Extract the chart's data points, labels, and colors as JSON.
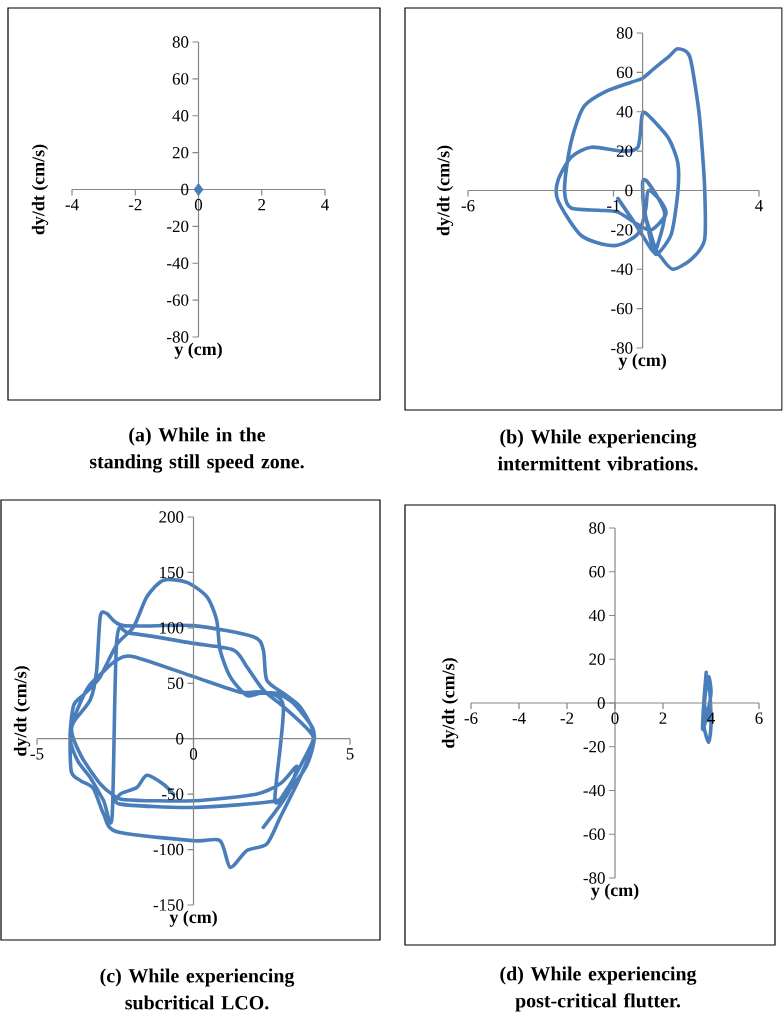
{
  "chart_data": [
    {
      "type": "scatter",
      "title": "(a) While in the standing still speed zone.",
      "xlabel": "y (cm)",
      "ylabel": "dy/dt (cm/s)",
      "xlim": [
        -4,
        4
      ],
      "ylim": [
        -80,
        80
      ],
      "xticks": [
        -4,
        -2,
        0,
        2,
        4
      ],
      "yticks": [
        -80,
        -60,
        -40,
        -20,
        0,
        20,
        40,
        60,
        80
      ],
      "marker": "diamond",
      "color": "#4a7ebb",
      "x": [
        0
      ],
      "values": [
        0
      ]
    },
    {
      "type": "line",
      "title": "(b) While experiencing intermittent vibrations.",
      "xlabel": "y (cm)",
      "ylabel": "dy/dt (cm/s)",
      "xlim": [
        -6,
        4
      ],
      "ylim": [
        -80,
        80
      ],
      "xticks": [
        -6,
        -1,
        4
      ],
      "yticks": [
        -80,
        -60,
        -40,
        -20,
        0,
        20,
        40,
        60,
        80
      ],
      "marker": "none",
      "color": "#4a7ebb",
      "x": [
        -0.85,
        -0.16,
        0.36,
        0.53,
        0.76,
        0.5,
        0.13,
        0,
        0.05,
        0.24,
        0.45,
        0.64,
        1.04,
        1.67,
        2.13,
        2.13,
        2.0,
        1.9,
        1.62,
        1.21,
        0.9,
        0.4,
        0,
        -0.39,
        -1.31,
        -2.0,
        -2.34,
        -2.57,
        -2.68,
        -2.45,
        -1.5,
        -0.85,
        -0.2,
        0.3,
        0.8,
        0.6,
        0.2,
        0.1,
        -0.16,
        -0.96,
        -2.1,
        -2.91,
        -2.91,
        -2.45,
        -1.76,
        -0.73,
        -0.16,
        -0.02,
        0.13,
        0.87,
        1.21,
        1.21,
        0.99,
        0.53,
        0.36,
        0.13,
        0
      ],
      "values": [
        -4,
        -19,
        -31,
        -27,
        -12,
        -3,
        5,
        4,
        -10,
        -20,
        -30,
        -34,
        -40,
        -35,
        -25,
        2,
        30,
        44,
        68,
        72,
        68,
        62,
        57,
        55,
        50,
        43,
        31,
        16,
        -1,
        -9,
        -10,
        -11,
        -17,
        -20,
        -12,
        -5,
        0,
        -10,
        -22,
        -28,
        -23,
        -5,
        5,
        17,
        22,
        20,
        22,
        38,
        39,
        27,
        14,
        -1,
        -22,
        -32,
        -30,
        -15,
        -3
      ]
    },
    {
      "type": "line",
      "title": "(c) While experiencing subcritical LCO.",
      "xlabel": "y (cm)",
      "ylabel": "dy/dt (cm/s)",
      "xlim": [
        -5,
        5
      ],
      "ylim": [
        -150,
        200
      ],
      "xticks": [
        -5,
        0,
        5
      ],
      "yticks": [
        -150,
        -100,
        -50,
        0,
        50,
        100,
        150,
        200
      ],
      "marker": "none",
      "color": "#4a7ebb",
      "x": [
        -0.64,
        -0.96,
        -1.49,
        -1.81,
        -2.34,
        -2.34,
        0,
        2.66,
        3.09,
        3.6,
        3.83,
        3.78,
        3.4,
        2.87,
        2.34,
        2.23,
        1.91,
        0,
        -2.23,
        -2.77,
        -2.98,
        -3.1,
        -3.3,
        -3.83,
        -3.94,
        -3.9,
        -3.6,
        -3.2,
        -2.87,
        -2.45,
        0,
        0.85,
        1.17,
        1.7,
        2.34,
        2.77,
        3.4,
        3.83,
        3.8,
        3.19,
        2.66,
        2.13,
        1.7,
        1.17,
        0.85,
        0.74,
        0.43,
        -0.21,
        -0.96,
        -1.49,
        -1.91,
        -2.45,
        -3.0,
        -3.5,
        -3.83,
        -3.94,
        -3.7,
        -3.3,
        -2.87,
        -2.6,
        -2.45,
        -2.02,
        0,
        1.28,
        1.7,
        2.23,
        2.87,
        3.6,
        3.83,
        3.5,
        3.0,
        2.6,
        2.87,
        2.23,
        1.49,
        0,
        -1.91,
        -2.45,
        -2.9,
        -3.4,
        -3.9,
        -3.6,
        -3.0,
        -2.6,
        -2.2,
        0,
        2.0,
        2.8,
        3.3,
        3.0,
        2.23
      ],
      "values": [
        -50,
        -41,
        -33,
        -44,
        -50,
        -59,
        -62,
        -56,
        -45,
        -25,
        -5,
        10,
        29,
        41,
        53,
        80,
        92,
        102,
        102,
        113,
        110,
        60,
        35,
        15,
        0,
        -30,
        -38,
        -45,
        -68,
        -84,
        -92,
        -92,
        -116,
        -101,
        -95,
        -71,
        -35,
        -5,
        10,
        32,
        41,
        41,
        39,
        56,
        80,
        107,
        128,
        141,
        143,
        128,
        101,
        85,
        55,
        40,
        30,
        0,
        -20,
        -35,
        -56,
        -70,
        89,
        95,
        86,
        80,
        65,
        44,
        29,
        10,
        0,
        -20,
        -45,
        -55,
        29,
        42,
        42,
        56,
        74,
        71,
        60,
        45,
        10,
        -15,
        -40,
        -50,
        -55,
        -56,
        -50,
        -40,
        -25,
        -50,
        -80
      ]
    },
    {
      "type": "line",
      "title": "(d) While experiencing post-critical flutter.",
      "xlabel": "y (cm)",
      "ylabel": "dy/dt (cm/s)",
      "xlim": [
        -6,
        6
      ],
      "ylim": [
        -80,
        80
      ],
      "xticks": [
        -6,
        -4,
        -2,
        0,
        2,
        4,
        6
      ],
      "yticks": [
        -80,
        -60,
        -40,
        -20,
        0,
        20,
        40,
        60,
        80
      ],
      "marker": "none",
      "color": "#4a7ebb",
      "x": [
        3.8,
        3.7,
        3.65,
        3.85,
        4.0,
        3.9,
        3.75,
        3.7,
        3.9,
        4.0,
        3.95,
        3.8,
        3.72,
        3.9
      ],
      "values": [
        14,
        0,
        -12,
        -5,
        5,
        12,
        3,
        -10,
        -18,
        -10,
        5,
        10,
        0,
        -8
      ]
    }
  ]
}
